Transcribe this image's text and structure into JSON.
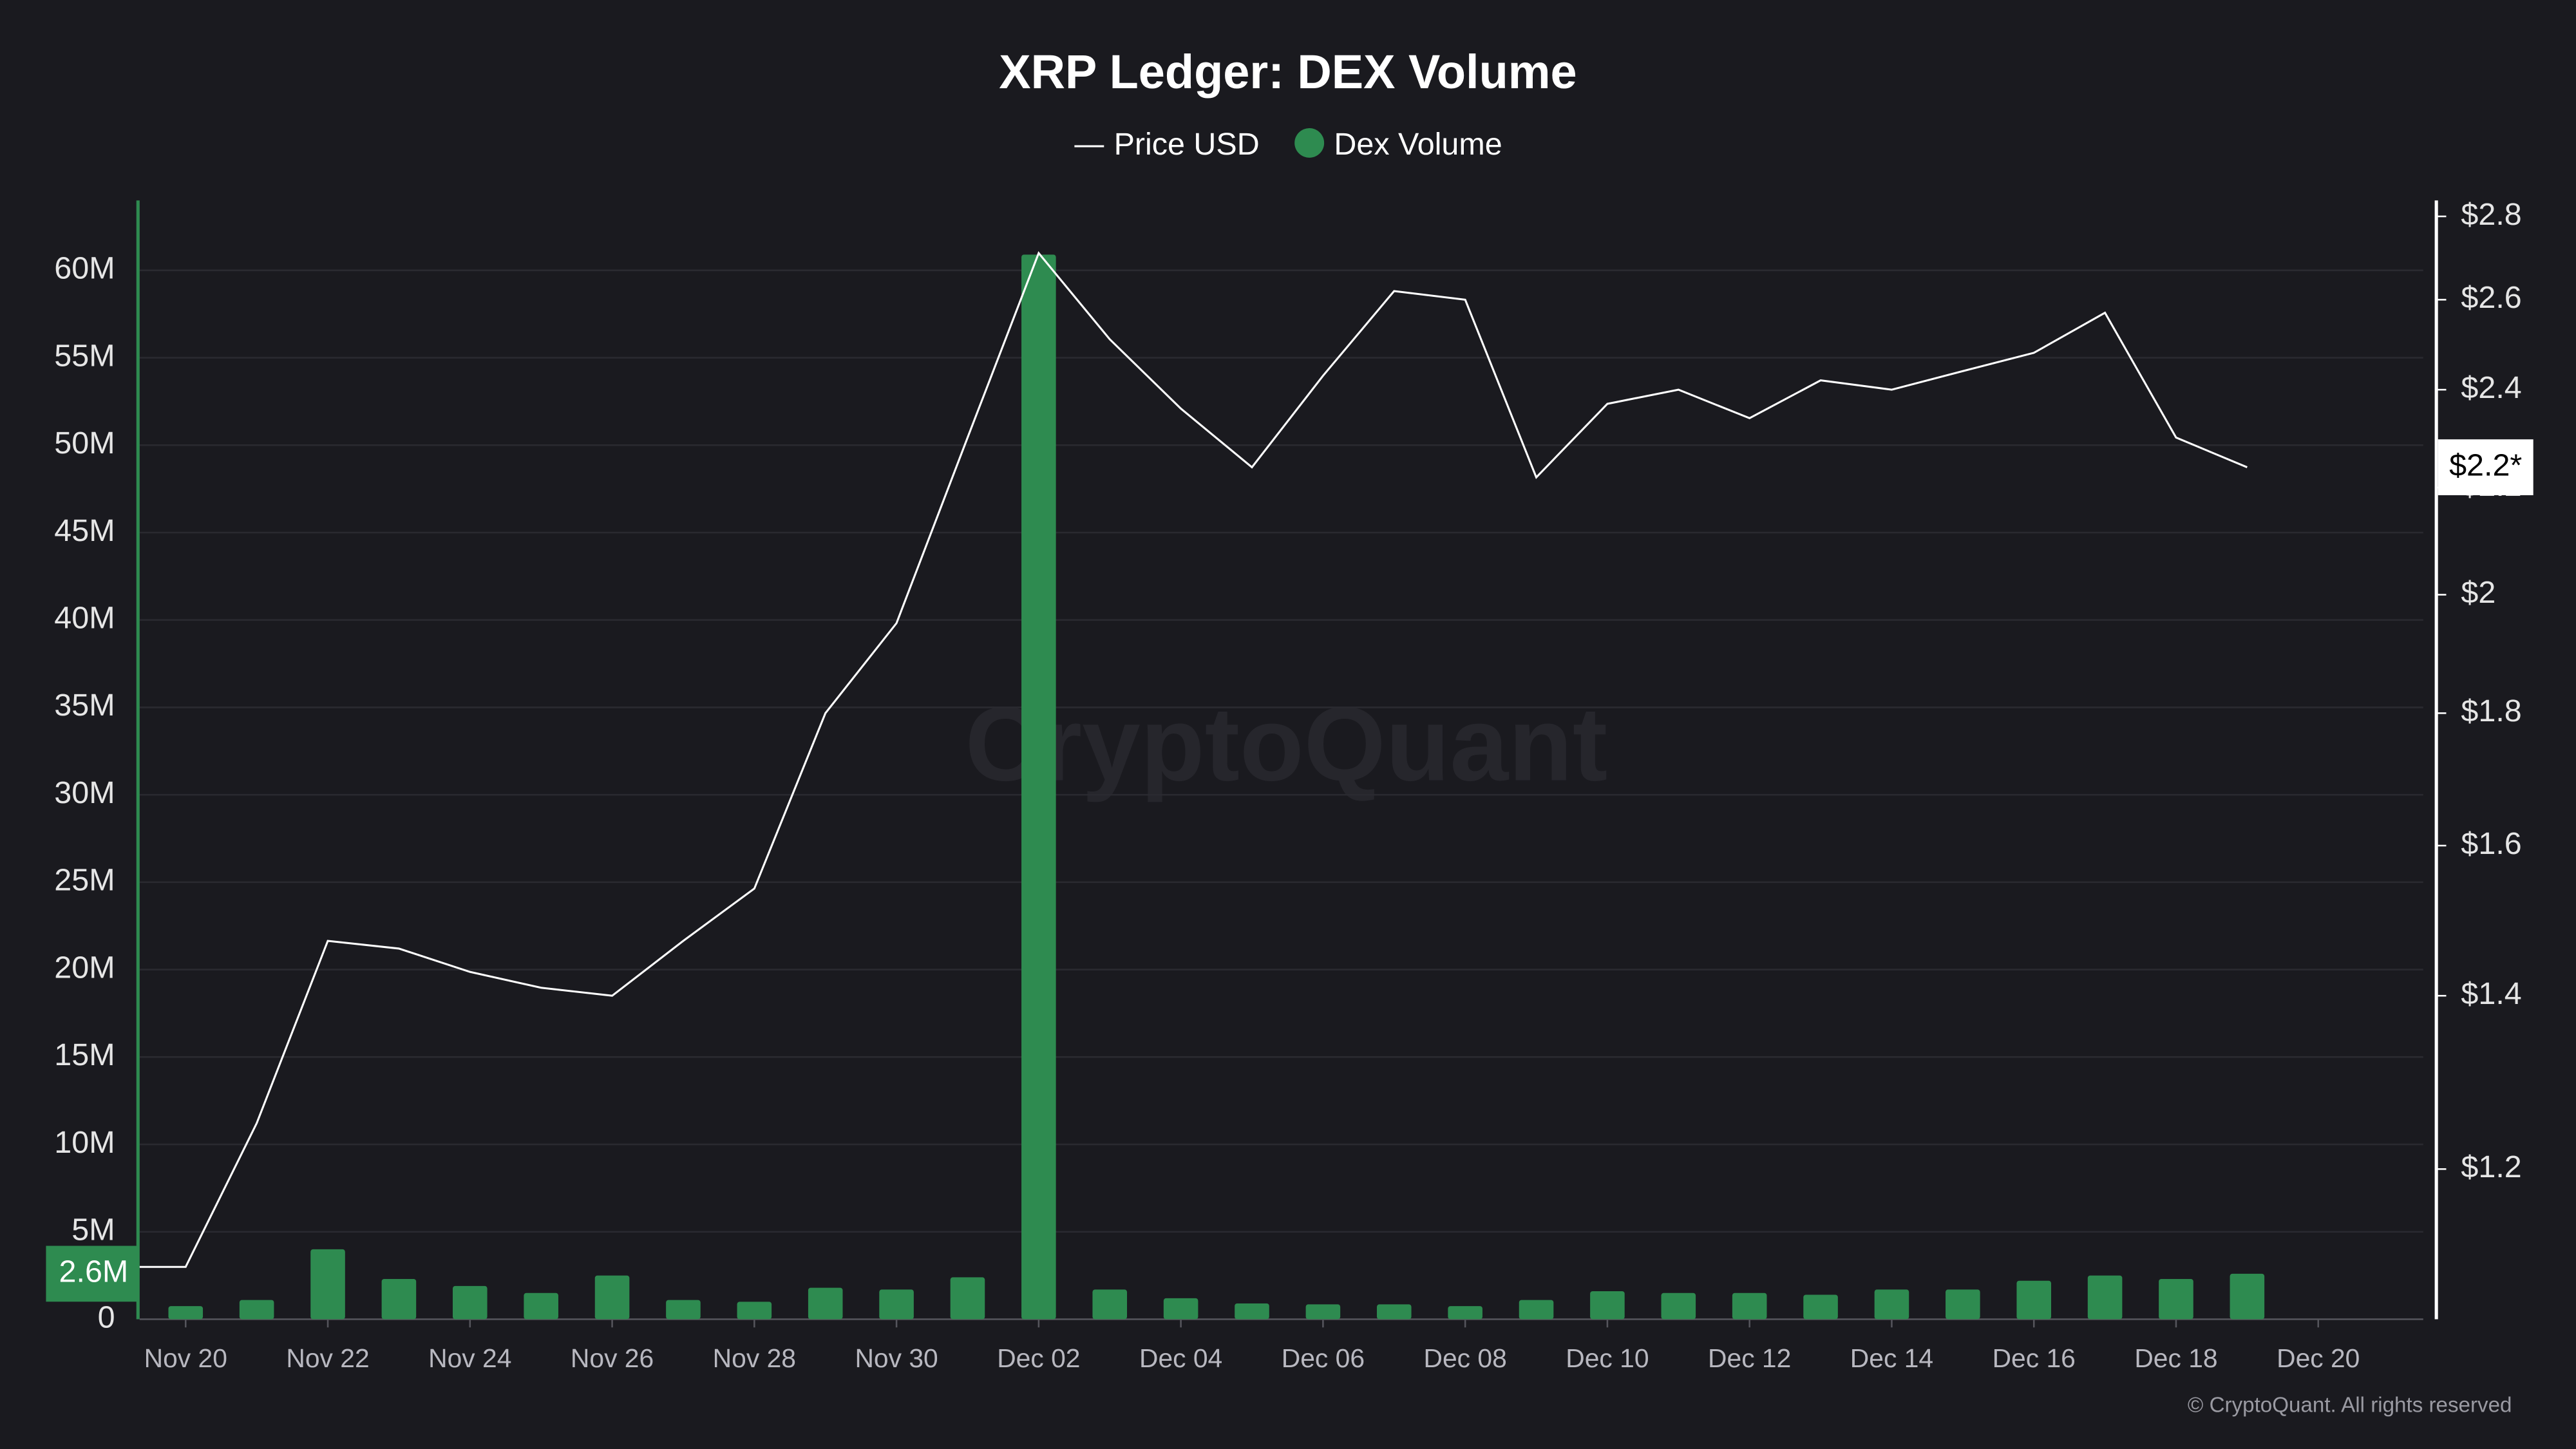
{
  "chart_data": {
    "type": "bar",
    "title": "XRP Ledger: DEX Volume",
    "watermark": "CryptoQuant",
    "copyright": "© CryptoQuant. All rights reserved",
    "categories": [
      null,
      "Nov 20",
      null,
      "Nov 22",
      null,
      "Nov 24",
      null,
      "Nov 26",
      null,
      "Nov 28",
      null,
      "Nov 30",
      null,
      "Dec 02",
      null,
      "Dec 04",
      null,
      "Dec 06",
      null,
      "Dec 08",
      null,
      "Dec 10",
      null,
      "Dec 12",
      null,
      "Dec 14",
      null,
      "Dec 16",
      null,
      "Dec 18",
      null,
      "Dec 20"
    ],
    "series": [
      {
        "name": "Price USD",
        "type": "line",
        "axis": "y2",
        "color": "#ffffff",
        "values": [
          1.1,
          1.1,
          1.25,
          1.47,
          1.46,
          1.43,
          1.41,
          1.4,
          1.47,
          1.54,
          1.8,
          1.95,
          2.3,
          2.71,
          2.51,
          2.36,
          2.24,
          2.43,
          2.62,
          2.6,
          2.22,
          2.37,
          2.4,
          2.34,
          2.42,
          2.4,
          2.44,
          2.48,
          2.57,
          2.3,
          2.24,
          null
        ]
      },
      {
        "name": "Dex Volume",
        "type": "bar",
        "color": "#2e8b50",
        "values": [
          null,
          750000,
          1100000,
          4000000,
          2300000,
          1900000,
          1500000,
          2500000,
          1100000,
          1000000,
          1800000,
          1700000,
          2400000,
          60900000,
          1700000,
          1200000,
          900000,
          850000,
          850000,
          750000,
          1100000,
          1600000,
          1500000,
          1500000,
          1400000,
          1700000,
          1700000,
          2200000,
          2500000,
          2300000,
          2600000,
          null
        ]
      }
    ],
    "volume_label": "2.6M",
    "price_label": "$2.2*",
    "ylim": [
      0,
      64000000
    ],
    "yticks": [
      0,
      {
        "value": 5000000,
        "label": "5M"
      },
      {
        "value": 10000000,
        "label": "10M"
      },
      {
        "value": 15000000,
        "label": "15M"
      },
      {
        "value": 20000000,
        "label": "20M"
      },
      {
        "value": 25000000,
        "label": "25M"
      },
      {
        "value": 30000000,
        "label": "30M"
      },
      {
        "value": 35000000,
        "label": "35M"
      },
      {
        "value": 40000000,
        "label": "40M"
      },
      {
        "value": 45000000,
        "label": "45M"
      },
      {
        "value": 50000000,
        "label": "50M"
      },
      {
        "value": 55000000,
        "label": "55M"
      },
      {
        "value": 60000000,
        "label": "60M"
      }
    ],
    "y2lim": [
      1.05,
      2.84
    ],
    "y2scale": "log",
    "y2ticks": [
      {
        "value": 1.2,
        "label": "$1.2"
      },
      {
        "value": 1.4,
        "label": "$1.4"
      },
      {
        "value": 1.6,
        "label": "$1.6"
      },
      {
        "value": 1.8,
        "label": "$1.8"
      },
      {
        "value": 2,
        "label": "$2"
      },
      {
        "value": 2.2,
        "label": "$2.2"
      },
      {
        "value": 2.4,
        "label": "$2.4"
      },
      {
        "value": 2.6,
        "label": "$2.6"
      },
      {
        "value": 2.8,
        "label": "$2.8"
      }
    ],
    "grid": true,
    "legend": "top"
  }
}
